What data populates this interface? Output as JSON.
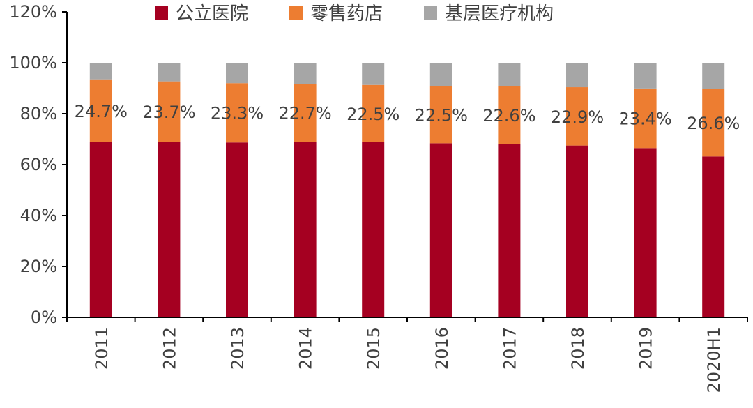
{
  "chart_data": {
    "type": "bar",
    "stacked": true,
    "categories": [
      "2011",
      "2012",
      "2013",
      "2014",
      "2015",
      "2016",
      "2017",
      "2018",
      "2019",
      "2020H1"
    ],
    "series": [
      {
        "name": "公立医院",
        "color": "#A50021",
        "values": [
          68.8,
          69.0,
          68.7,
          69.0,
          68.8,
          68.4,
          68.2,
          67.5,
          66.5,
          63.2
        ]
      },
      {
        "name": "零售药店",
        "color": "#ED7D31",
        "values": [
          24.7,
          23.7,
          23.3,
          22.7,
          22.5,
          22.5,
          22.6,
          22.9,
          23.4,
          26.6
        ]
      },
      {
        "name": "基层医疗机构",
        "color": "#A6A6A6",
        "values": [
          6.5,
          7.3,
          8.0,
          8.3,
          8.7,
          9.1,
          9.2,
          9.6,
          10.1,
          10.2
        ]
      }
    ],
    "data_labels": [
      "24.7%",
      "23.7%",
      "23.3%",
      "22.7%",
      "22.5%",
      "22.5%",
      "22.6%",
      "22.9%",
      "23.4%",
      "26.6%"
    ],
    "y_ticks": [
      "0%",
      "20%",
      "40%",
      "60%",
      "80%",
      "100%",
      "120%"
    ],
    "ylim": [
      0,
      120
    ],
    "legend_position": "top",
    "grid": false,
    "xlabel": "",
    "ylabel": ""
  }
}
